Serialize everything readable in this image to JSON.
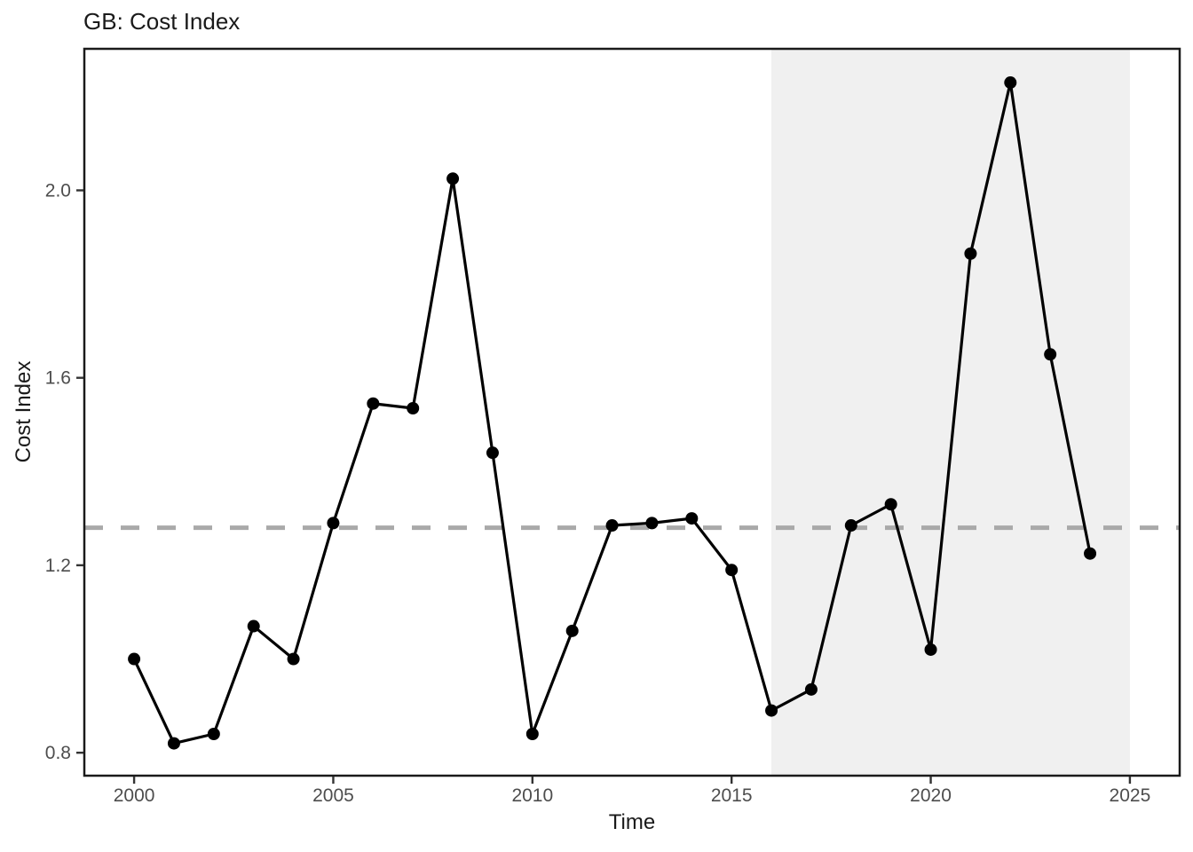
{
  "chart_data": {
    "type": "line",
    "title": "GB: Cost Index",
    "xlabel": "Time",
    "ylabel": "Cost Index",
    "x": [
      2000,
      2001,
      2002,
      2003,
      2004,
      2005,
      2006,
      2007,
      2008,
      2009,
      2010,
      2011,
      2012,
      2013,
      2014,
      2015,
      2016,
      2017,
      2018,
      2019,
      2020,
      2021,
      2022,
      2023,
      2024
    ],
    "values": [
      1.0,
      0.82,
      0.84,
      1.07,
      1.0,
      1.29,
      1.545,
      1.535,
      2.025,
      1.44,
      0.84,
      1.06,
      1.285,
      1.29,
      1.3,
      1.19,
      0.89,
      0.935,
      1.285,
      1.33,
      1.02,
      1.865,
      2.23,
      1.65,
      1.225
    ],
    "x_ticks": [
      2000,
      2005,
      2010,
      2015,
      2020,
      2025
    ],
    "x_tick_labels": [
      "2000",
      "2005",
      "2010",
      "2015",
      "2020",
      "2025"
    ],
    "y_ticks": [
      0.8,
      1.2,
      1.6,
      2.0
    ],
    "y_tick_labels": [
      "0.8",
      "1.2",
      "1.6",
      "2.0"
    ],
    "xlim": [
      1998.75,
      2026.25
    ],
    "ylim": [
      0.751,
      2.302
    ],
    "reference_line": {
      "value": 1.28,
      "style": "dashed",
      "color": "#a9a9a9"
    },
    "shaded_region": {
      "x_start": 2016,
      "x_end": 2025,
      "color": "#f0f0f0"
    },
    "line_color": "#000000",
    "point_color": "#000000",
    "panel_border_color": "#1a1a1a",
    "tick_color": "#333333",
    "tick_label_color": "#4d4d4d",
    "background": "#ffffff",
    "grid": false,
    "legend": false
  }
}
